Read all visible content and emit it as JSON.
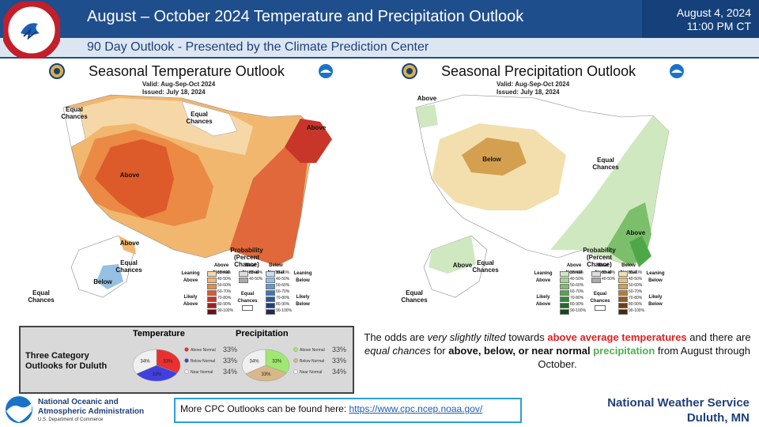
{
  "header": {
    "title": "August – October 2024 Temperature  and Precipitation Outlook",
    "date": "August 4, 2024",
    "time": "11:00 PM CT",
    "subtitle": "90 Day Outlook - Presented by the Climate Prediction Center"
  },
  "temp_map": {
    "title": "Seasonal Temperature Outlook",
    "valid": "Valid:  Aug-Sep-Oct 2024",
    "issued": "Issued:  July 18, 2024",
    "labels": {
      "equal_chances_west": "Equal Chances",
      "equal_chances_north": "Equal Chances",
      "above_ne": "Above",
      "above_west": "Above",
      "above_ak": "Above",
      "equal_chances_ak": "Equal Chances",
      "below_ak": "Below",
      "equal_chances_ak2": "Equal Chances"
    },
    "legend": {
      "title": "Probability (Percent Chance)",
      "above_normal": "Above Normal",
      "near_normal": "Near Normal",
      "below_normal": "Below Normal",
      "leaning_above": "Leaning Above",
      "likely_above": "Likely Above",
      "leaning_below": "Leaning Below",
      "likely_below": "Likely Below",
      "equal_chances": "Equal Chances",
      "rows": [
        "33-40%",
        "40-50%",
        "50-60%",
        "60-70%",
        "70-80%",
        "80-90%",
        "90-100%"
      ],
      "above_colors": [
        "#f6d8a8",
        "#f2b76e",
        "#ea8a45",
        "#dd5a2b",
        "#c8362a",
        "#9e2020",
        "#6e1010"
      ],
      "below_colors": [
        "#c9dff0",
        "#95bfe3",
        "#5c9bd1",
        "#3a78b8",
        "#2a579a",
        "#203e7a",
        "#1c2a5a"
      ]
    }
  },
  "precip_map": {
    "title": "Seasonal Precipitation Outlook",
    "valid": "Valid:  Aug-Sep-Oct 2024",
    "issued": "Issued:  July 18, 2024",
    "labels": {
      "above_nw": "Above",
      "below_west": "Below",
      "equal_chances_east": "Equal Chances",
      "above_se": "Above",
      "above_ak": "Above",
      "equal_chances_ak": "Equal Chances",
      "equal_chances_ak2": "Equal Chances"
    },
    "legend": {
      "title": "Probability (Percent Chance)",
      "above_normal": "Above Normal",
      "near_normal": "Near Normal",
      "below_normal": "Below Normal",
      "leaning_above": "Leaning Above",
      "likely_above": "Likely Above",
      "leaning_below": "Leaning Below",
      "likely_below": "Likely Below",
      "equal_chances": "Equal Chances",
      "rows": [
        "33-40%",
        "40-50%",
        "50-60%",
        "60-70%",
        "70-80%",
        "80-90%",
        "90-100%"
      ],
      "above_colors": [
        "#cfe8c0",
        "#a6d494",
        "#7cbf6a",
        "#4ea84a",
        "#2e8a36",
        "#1f6a2a",
        "#134a1c"
      ],
      "below_colors": [
        "#f3dfae",
        "#e6c27c",
        "#d4a050",
        "#b87c34",
        "#925a22",
        "#6e3e16",
        "#4a280c"
      ]
    }
  },
  "duluth": {
    "label": "Three Category Outlooks for Duluth",
    "temperature": {
      "title": "Temperature",
      "slices": [
        {
          "name": "Above Normal",
          "value": 33,
          "label": "33%",
          "color": "#e83030"
        },
        {
          "name": "Below Normal",
          "value": 33,
          "label": "33%",
          "color": "#4040e0"
        },
        {
          "name": "Near Normal",
          "value": 34,
          "label": "34%",
          "color": "#f0f0f0"
        }
      ]
    },
    "precipitation": {
      "title": "Precipitation",
      "slices": [
        {
          "name": "Above Normal",
          "value": 33,
          "label": "33%",
          "color": "#a0e870"
        },
        {
          "name": "Below Normal",
          "value": 33,
          "label": "33%",
          "color": "#d8b888"
        },
        {
          "name": "Near Normal",
          "value": 34,
          "label": "34%",
          "color": "#f0f0f0"
        }
      ]
    }
  },
  "summary": {
    "p1": "The odds are ",
    "p2": "very slightly tilted",
    "p3": " towards ",
    "p4": "above average temperatures",
    "p5": " and there are ",
    "p6": "equal chances",
    "p7": " for ",
    "p8": "above, below, or near normal",
    "p9": " ",
    "p10": "precipitation",
    "p11": " from August through October."
  },
  "footer": {
    "link_prefix": "More CPC Outlooks can be found here: ",
    "link_url": "https://www.cpc.ncep.noaa.gov/",
    "noaa_line1": "National Oceanic and",
    "noaa_line2": "Atmospheric Administration",
    "noaa_dept": "U.S. Department of Commerce",
    "nws_line1": "National Weather Service",
    "nws_line2": "Duluth, MN"
  }
}
